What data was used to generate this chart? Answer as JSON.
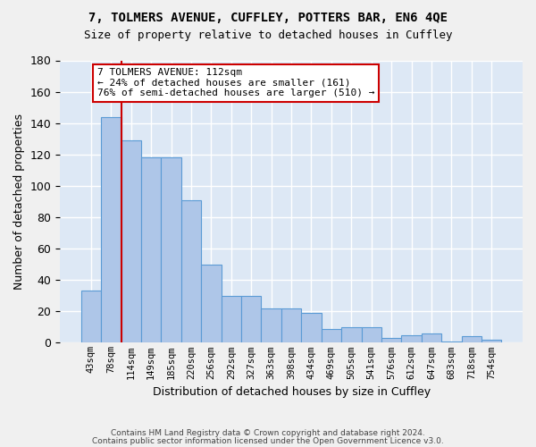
{
  "title1": "7, TOLMERS AVENUE, CUFFLEY, POTTERS BAR, EN6 4QE",
  "title2": "Size of property relative to detached houses in Cuffley",
  "xlabel": "Distribution of detached houses by size in Cuffley",
  "ylabel": "Number of detached properties",
  "categories": [
    "43sqm",
    "78sqm",
    "114sqm",
    "149sqm",
    "185sqm",
    "220sqm",
    "256sqm",
    "292sqm",
    "327sqm",
    "363sqm",
    "398sqm",
    "434sqm",
    "469sqm",
    "505sqm",
    "541sqm",
    "576sqm",
    "612sqm",
    "647sqm",
    "683sqm",
    "718sqm",
    "754sqm"
  ],
  "values": [
    33,
    144,
    129,
    118,
    118,
    91,
    50,
    30,
    30,
    22,
    22,
    19,
    9,
    10,
    10,
    3,
    5,
    6,
    1,
    4,
    2
  ],
  "bar_color": "#aec6e8",
  "bar_edge_color": "#5b9bd5",
  "background_color": "#dde8f5",
  "grid_color": "#ffffff",
  "annotation_line1": "7 TOLMERS AVENUE: 112sqm",
  "annotation_line2": "← 24% of detached houses are smaller (161)",
  "annotation_line3": "76% of semi-detached houses are larger (510) →",
  "vline_x": 1.5,
  "vline_color": "#cc0000",
  "footer1": "Contains HM Land Registry data © Crown copyright and database right 2024.",
  "footer2": "Contains public sector information licensed under the Open Government Licence v3.0.",
  "ylim": [
    0,
    180
  ],
  "yticks": [
    0,
    20,
    40,
    60,
    80,
    100,
    120,
    140,
    160,
    180
  ],
  "fig_bg": "#f0f0f0"
}
